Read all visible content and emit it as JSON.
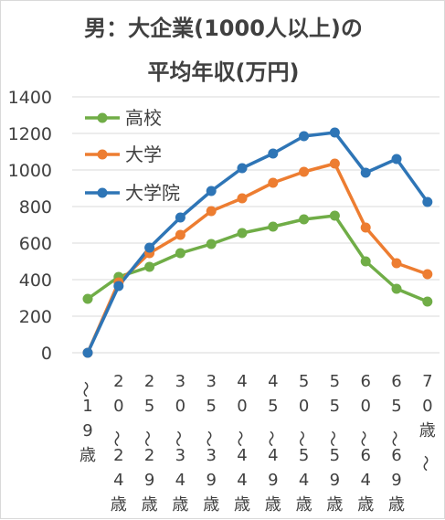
{
  "chart_data": {
    "type": "line",
    "title_line1": "男：大企業(1000人以上)の",
    "title_line2": "平均年収(万円)",
    "categories": [
      "～19歳",
      "20～24歳",
      "25～29歳",
      "30～34歳",
      "35～39歳",
      "40～44歳",
      "45～49歳",
      "50～54歳",
      "55～59歳",
      "60～64歳",
      "65～69歳",
      "70歳～"
    ],
    "yticks": [
      "0",
      "200",
      "400",
      "600",
      "800",
      "1000",
      "1200",
      "1400"
    ],
    "ylim": [
      0,
      1400
    ],
    "grid": true,
    "legend_position": "top-left",
    "series": [
      {
        "name": "高校",
        "color": "#70ad47",
        "values": [
          295,
          415,
          470,
          545,
          595,
          655,
          690,
          730,
          750,
          500,
          350,
          280
        ]
      },
      {
        "name": "大学",
        "color": "#ed7d31",
        "values": [
          0,
          385,
          545,
          645,
          775,
          845,
          930,
          990,
          1035,
          685,
          490,
          430
        ]
      },
      {
        "name": "大学院",
        "color": "#2e75b6",
        "values": [
          0,
          365,
          575,
          740,
          885,
          1010,
          1090,
          1185,
          1205,
          985,
          1060,
          825
        ]
      }
    ]
  }
}
